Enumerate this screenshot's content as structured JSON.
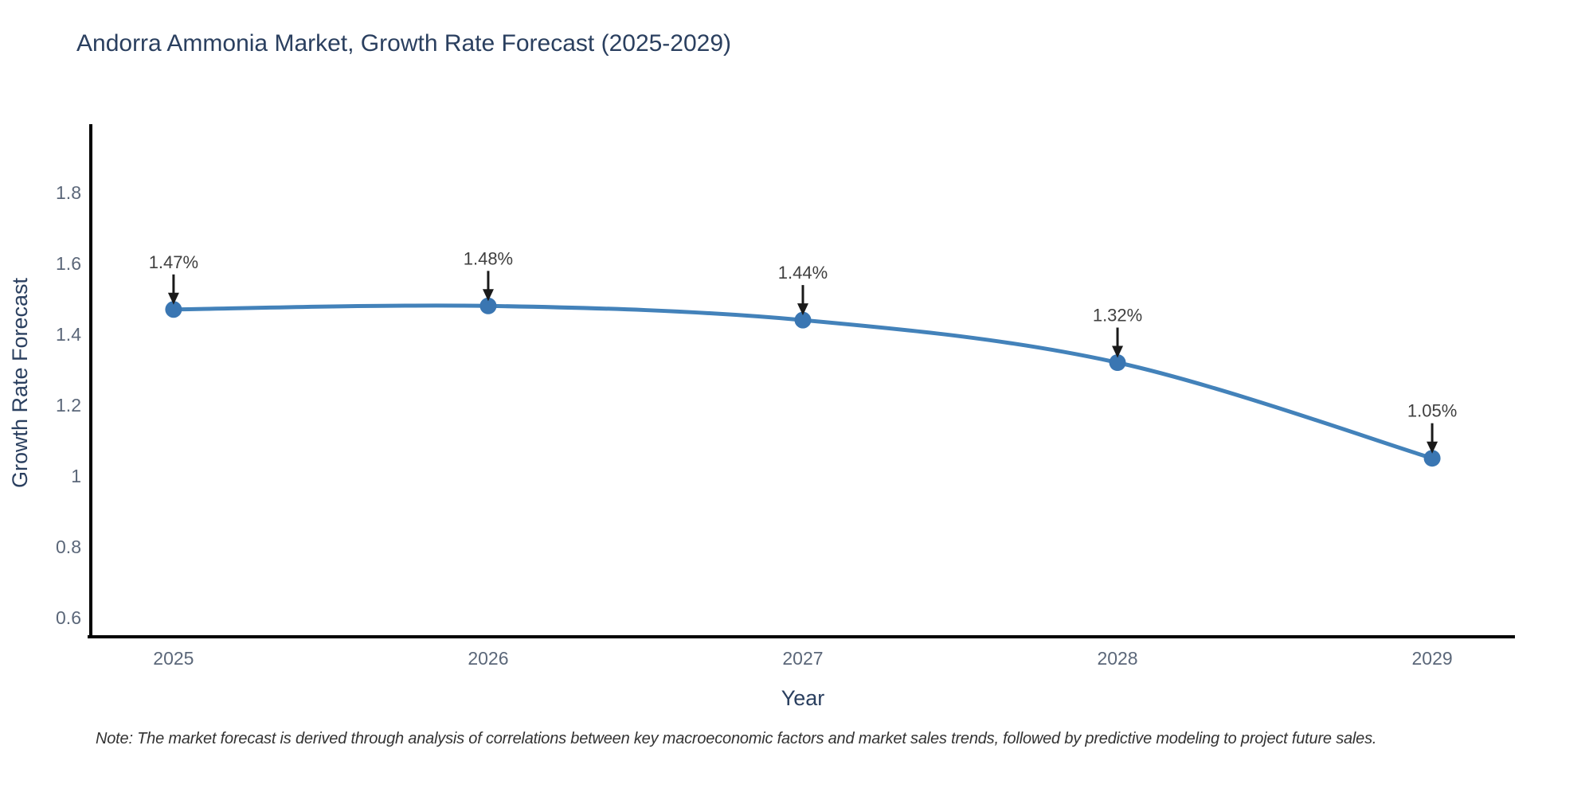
{
  "chart_data": {
    "type": "line",
    "title": "Andorra Ammonia Market, Growth Rate Forecast (2025-2029)",
    "xlabel": "Year",
    "ylabel": "Growth Rate Forecast",
    "x": [
      2025,
      2026,
      2027,
      2028,
      2029
    ],
    "categories": [
      "2025",
      "2026",
      "2027",
      "2028",
      "2029"
    ],
    "series": [
      {
        "name": "Growth Rate Forecast",
        "values": [
          1.47,
          1.48,
          1.44,
          1.32,
          1.05
        ],
        "point_labels": [
          "1.47%",
          "1.48%",
          "1.44%",
          "1.32%",
          "1.05%"
        ]
      }
    ],
    "xticks": [
      "2025",
      "2026",
      "2027",
      "2028",
      "2029"
    ],
    "yticks": [
      0.6,
      0.8,
      1,
      1.2,
      1.4,
      1.6,
      1.8
    ],
    "xlim": [
      2024.737,
      2029.258
    ],
    "ylim": [
      0.546,
      1.984
    ],
    "grid": false,
    "legend": "none",
    "line_shape": "spline",
    "annotations_style": "value-above-with-down-arrow",
    "colors": {
      "line": "#4382ba",
      "marker": "#3a76b2",
      "arrow": "#1a1a1a",
      "axis_line": "#000000",
      "title_text": "#2a3f5f",
      "tick_text": "#5b6779",
      "annotation_text": "#404040",
      "background": "#ffffff"
    }
  },
  "note": {
    "text": "Note: The market forecast is derived through analysis of correlations between key macroeconomic factors and market sales trends, followed by predictive modeling to project future sales."
  }
}
